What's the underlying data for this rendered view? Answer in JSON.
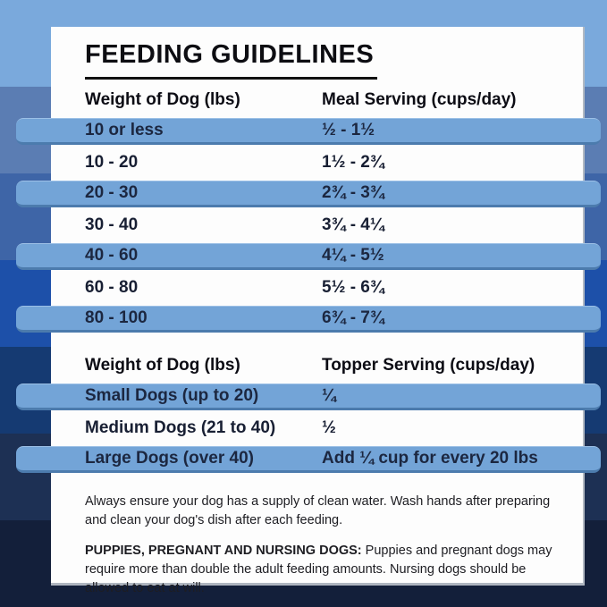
{
  "title": "FEEDING GUIDELINES",
  "meal_table": {
    "col1_header": "Weight of Dog (lbs)",
    "col2_header": "Meal Serving (cups/day)",
    "rows": [
      {
        "weight": "10 or less",
        "serving": "½ - 1½"
      },
      {
        "weight": "10 - 20",
        "serving": "1½ - 2¾"
      },
      {
        "weight": "20 - 30",
        "serving": "2¾ - 3¾"
      },
      {
        "weight": "30 - 40",
        "serving": "3¾ - 4¼"
      },
      {
        "weight": "40 - 60",
        "serving": "4¼ - 5½"
      },
      {
        "weight": "60 - 80",
        "serving": "5½ - 6¾"
      },
      {
        "weight": "80 - 100",
        "serving": "6¾ - 7¾"
      }
    ]
  },
  "topper_table": {
    "col1_header": "Weight of Dog (lbs)",
    "col2_header": "Topper Serving (cups/day)",
    "rows": [
      {
        "weight": "Small Dogs (up to 20)",
        "serving": "¼"
      },
      {
        "weight": "Medium Dogs (21 to 40)",
        "serving": "½"
      },
      {
        "weight": "Large Dogs (over 40)",
        "serving": "Add ¼ cup for every 20 lbs"
      }
    ]
  },
  "footnotes": {
    "water_note": "Always ensure your dog has a supply of clean water. Wash hands after preparing and clean your dog's dish after each feeding.",
    "puppies_label": "PUPPIES, PREGNANT AND NURSING DOGS:",
    "puppies_note": " Puppies and pregnant dogs may require more than double the adult feeding amounts. Nursing dogs should be allowed to eat at will."
  },
  "colors": {
    "row_highlight": "#73a4d7",
    "row_highlight_edge": "#4c7bad",
    "row_text": "#1c2740",
    "card_background": "#fdfdfd",
    "background_bands": [
      "#7aa9dc",
      "#5b7db3",
      "#3e65a7",
      "#1d50a9",
      "#153a72",
      "#1d3054",
      "#131f3a"
    ]
  }
}
